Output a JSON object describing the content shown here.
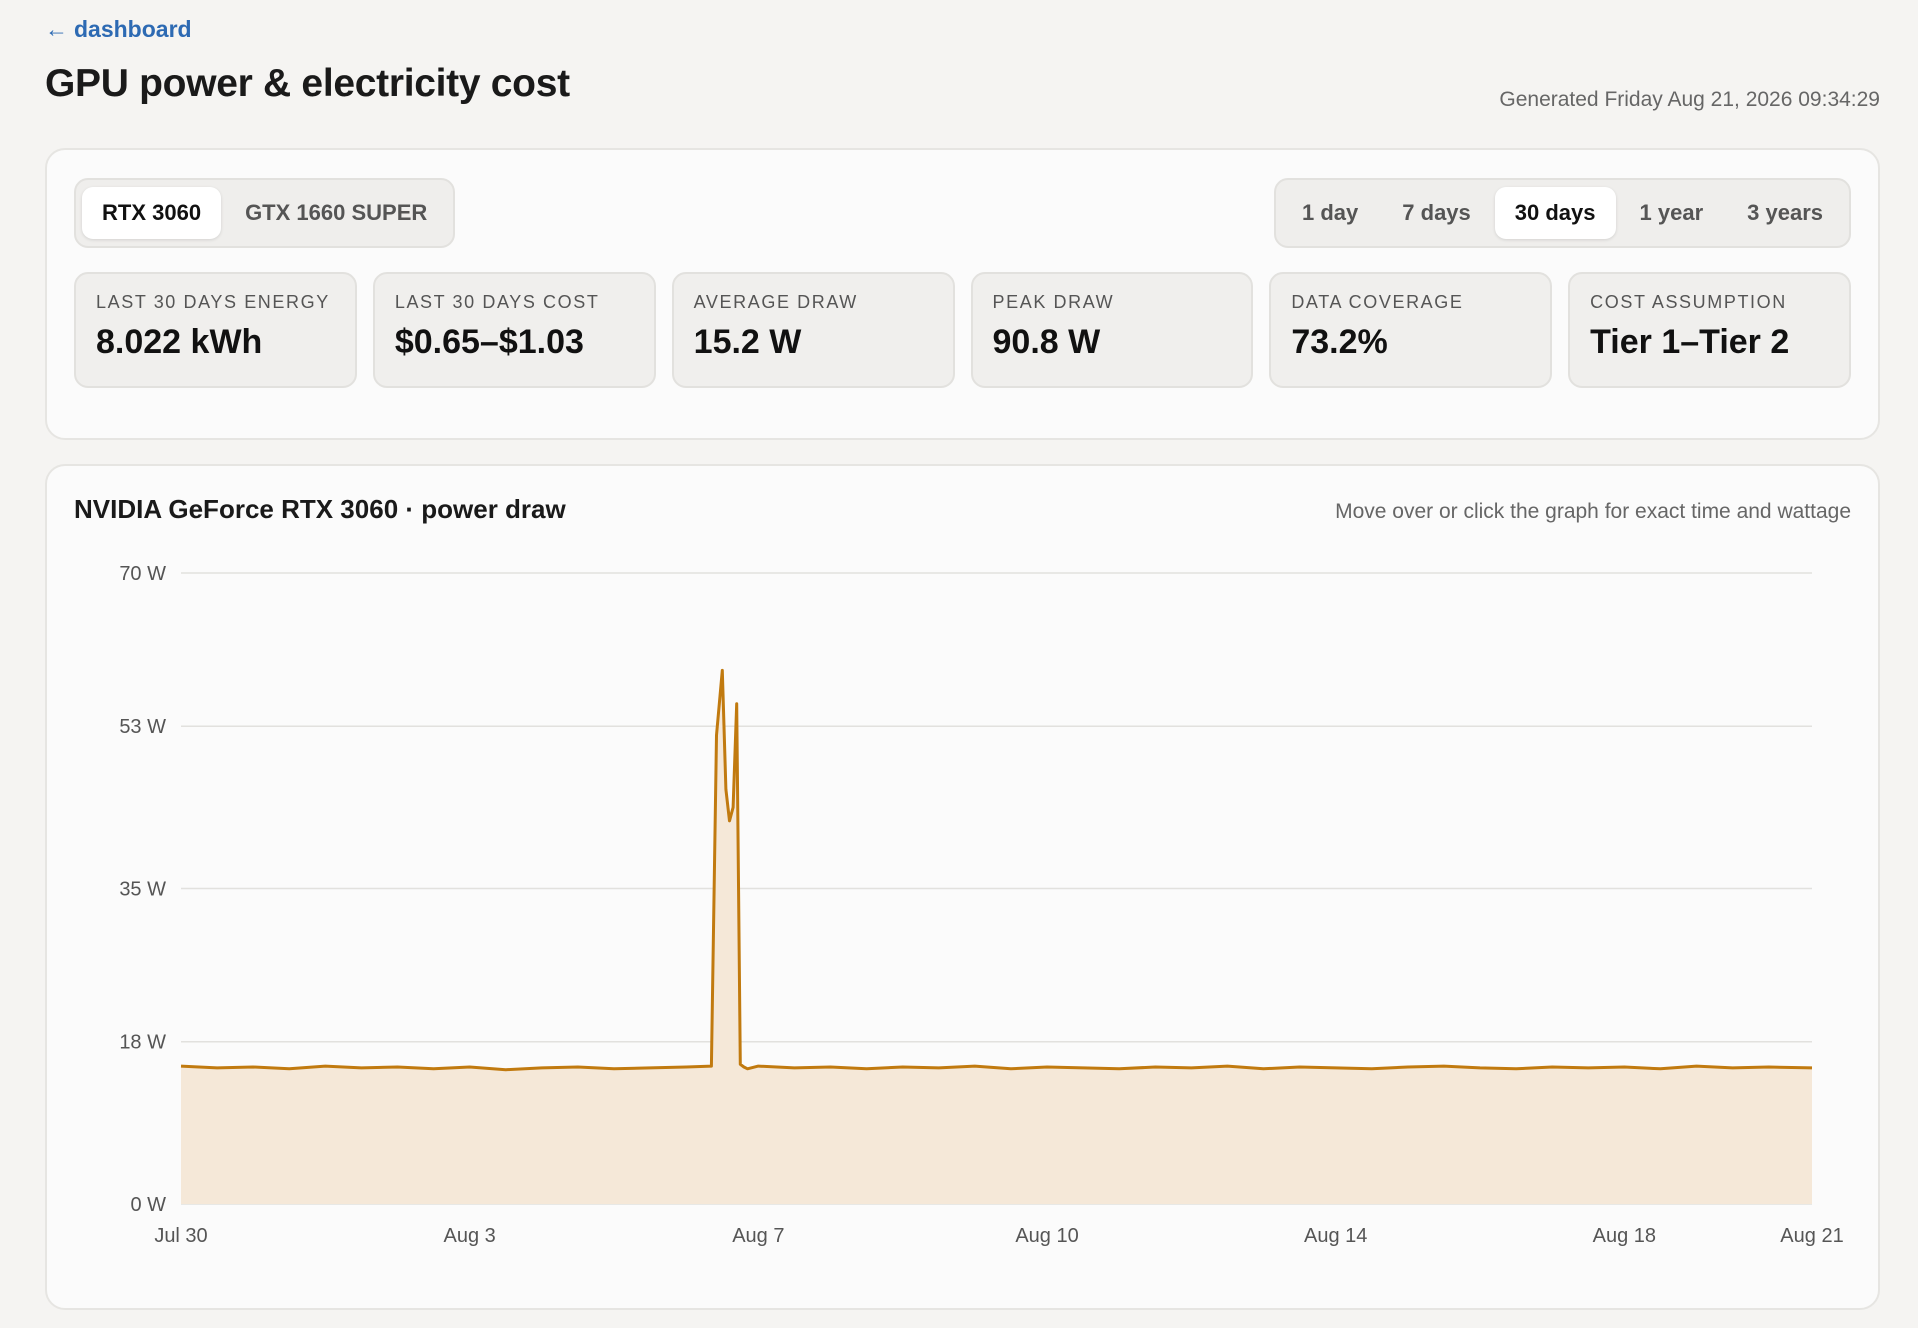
{
  "nav": {
    "back_arrow": "←",
    "back_label": "dashboard"
  },
  "header": {
    "title": "GPU power & electricity cost",
    "generated": "Generated Friday Aug 21, 2026 09:34:29"
  },
  "gpu_tabs": [
    {
      "label": "RTX 3060",
      "active": true
    },
    {
      "label": "GTX 1660 SUPER",
      "active": false
    }
  ],
  "range_tabs": [
    {
      "label": "1 day",
      "active": false
    },
    {
      "label": "7 days",
      "active": false
    },
    {
      "label": "30 days",
      "active": true
    },
    {
      "label": "1 year",
      "active": false
    },
    {
      "label": "3 years",
      "active": false
    }
  ],
  "stats": [
    {
      "label": "LAST 30 DAYS ENERGY",
      "value": "8.022 kWh"
    },
    {
      "label": "LAST 30 DAYS COST",
      "value": "$0.65–$1.03"
    },
    {
      "label": "AVERAGE DRAW",
      "value": "15.2 W"
    },
    {
      "label": "PEAK DRAW",
      "value": "90.8 W"
    },
    {
      "label": "DATA COVERAGE",
      "value": "73.2%"
    },
    {
      "label": "COST ASSUMPTION",
      "value": "Tier 1–Tier 2"
    }
  ],
  "chart_panel": {
    "title": "NVIDIA GeForce RTX 3060 · power draw",
    "hint": "Move over or click the graph for exact time and wattage"
  },
  "colors": {
    "accent": "#2d6ab3",
    "line": "#c17a0f",
    "fill": "#f5e8d8",
    "grid": "#e2e1de"
  },
  "chart_data": {
    "type": "area",
    "title": "NVIDIA GeForce RTX 3060 · power draw",
    "xlabel": "",
    "ylabel": "",
    "y_ticks": [
      0,
      18,
      35,
      53,
      70
    ],
    "y_tick_labels": [
      "0 W",
      "18 W",
      "35 W",
      "53 W",
      "70 W"
    ],
    "ylim": [
      0,
      70
    ],
    "x_tick_labels": [
      "Jul 30",
      "Aug 3",
      "Aug 7",
      "Aug 10",
      "Aug 14",
      "Aug 18",
      "Aug 21"
    ],
    "x_tick_days": [
      0,
      4,
      8,
      12,
      16,
      20,
      22.6
    ],
    "grid": true,
    "series": [
      {
        "x_days": [
          0,
          0.5,
          1,
          1.5,
          2,
          2.5,
          3,
          3.5,
          4,
          4.5,
          5,
          5.5,
          6,
          6.5,
          7,
          7.35,
          7.42,
          7.5,
          7.55,
          7.6,
          7.65,
          7.7,
          7.75,
          7.8,
          7.85,
          8,
          8.5,
          9,
          9.5,
          10,
          10.5,
          11,
          11.5,
          12,
          12.5,
          13,
          13.5,
          14,
          14.5,
          15,
          15.5,
          16,
          16.5,
          17,
          17.5,
          18,
          18.5,
          19,
          19.5,
          20,
          20.5,
          21,
          21.5,
          22,
          22.6
        ],
        "values": [
          15.3,
          15.1,
          15.2,
          15.0,
          15.3,
          15.1,
          15.2,
          15.0,
          15.2,
          14.9,
          15.1,
          15.2,
          15.0,
          15.1,
          15.2,
          15.3,
          52.0,
          59.2,
          46.0,
          42.5,
          44.0,
          55.5,
          15.5,
          15.2,
          15.0,
          15.3,
          15.1,
          15.2,
          15.0,
          15.2,
          15.1,
          15.3,
          15.0,
          15.2,
          15.1,
          15.0,
          15.2,
          15.1,
          15.3,
          15.0,
          15.2,
          15.1,
          15.0,
          15.2,
          15.3,
          15.1,
          15.0,
          15.2,
          15.1,
          15.2,
          15.0,
          15.3,
          15.1,
          15.2,
          15.1
        ]
      }
    ]
  }
}
